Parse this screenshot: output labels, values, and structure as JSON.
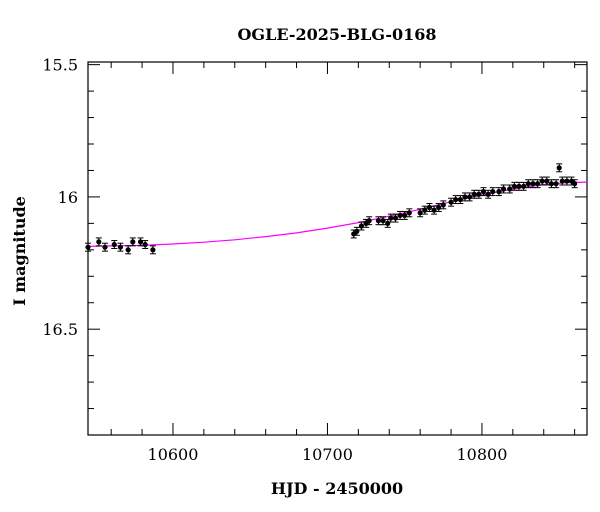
{
  "chart_data": {
    "type": "scatter",
    "title": "OGLE-2025-BLG-0168",
    "xlabel": "HJD - 2450000",
    "ylabel": "I magnitude",
    "xlim": [
      10545,
      10868
    ],
    "ylim": [
      16.9,
      15.49
    ],
    "y_inverted": true,
    "x_ticks": [
      10600,
      10700,
      10800
    ],
    "y_ticks": [
      15.5,
      16,
      16.5
    ],
    "colors": {
      "data": "#000000",
      "model": "#ff00ff",
      "axes": "#000000"
    },
    "series": [
      {
        "type": "scatter",
        "x": [
          10545,
          10552,
          10556,
          10562,
          10566,
          10571,
          10574,
          10579,
          10582,
          10587,
          10717,
          10719,
          10722,
          10725,
          10727,
          10733,
          10736,
          10739,
          10741,
          10744,
          10747,
          10750,
          10753,
          10760,
          10763,
          10766,
          10769,
          10772,
          10775,
          10780,
          10783,
          10786,
          10789,
          10792,
          10795,
          10798,
          10801,
          10804,
          10807,
          10811,
          10814,
          10818,
          10821,
          10824,
          10827,
          10830,
          10833,
          10836,
          10839,
          10842,
          10845,
          10848,
          10850,
          10852,
          10855,
          10858,
          10860
        ],
        "y": [
          16.19,
          16.17,
          16.19,
          16.18,
          16.19,
          16.2,
          16.17,
          16.17,
          16.18,
          16.2,
          16.14,
          16.13,
          16.11,
          16.1,
          16.09,
          16.09,
          16.09,
          16.1,
          16.08,
          16.08,
          16.07,
          16.07,
          16.06,
          16.06,
          16.05,
          16.04,
          16.05,
          16.04,
          16.03,
          16.02,
          16.01,
          16.01,
          16.0,
          16.0,
          15.99,
          15.99,
          15.98,
          15.99,
          15.98,
          15.98,
          15.97,
          15.97,
          15.96,
          15.96,
          15.96,
          15.95,
          15.95,
          15.95,
          15.94,
          15.94,
          15.95,
          15.95,
          15.89,
          15.94,
          15.94,
          15.94,
          15.95
        ],
        "yerr": 0.015
      },
      {
        "type": "line",
        "x": [
          10545,
          10560,
          10580,
          10600,
          10620,
          10640,
          10660,
          10680,
          10700,
          10720,
          10740,
          10760,
          10780,
          10800,
          10820,
          10840,
          10855,
          10868
        ],
        "y": [
          16.187,
          16.185,
          16.183,
          16.178,
          16.171,
          16.162,
          16.15,
          16.136,
          16.118,
          16.097,
          16.073,
          16.047,
          16.018,
          15.993,
          15.97,
          15.953,
          15.946,
          15.944
        ]
      }
    ]
  }
}
